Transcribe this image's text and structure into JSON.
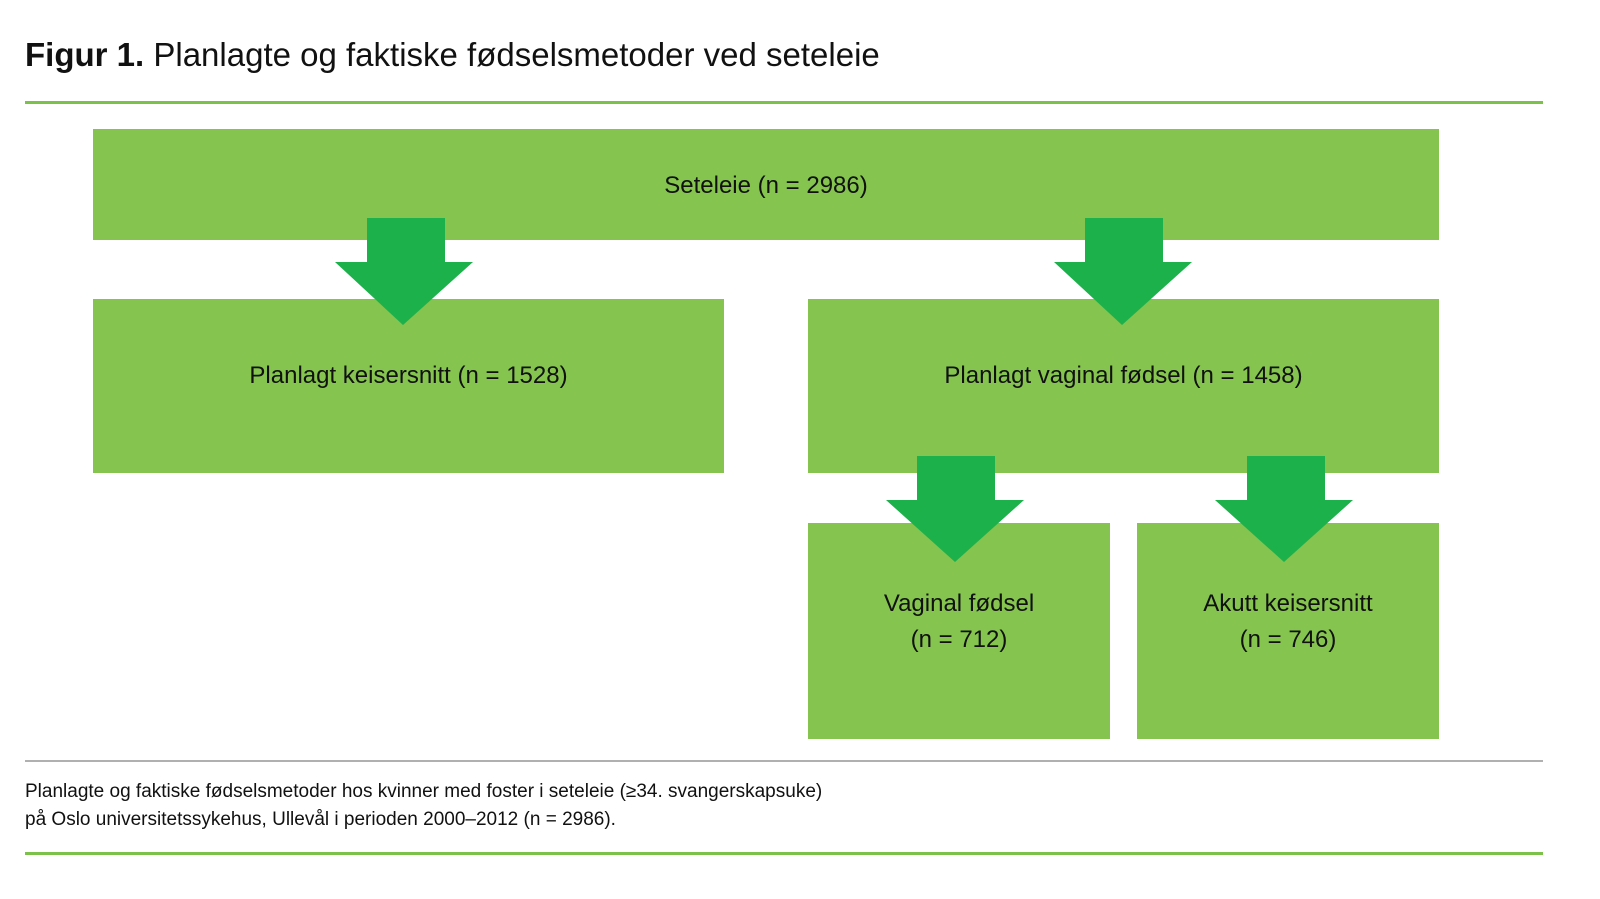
{
  "title": {
    "prefix": "Figur 1.",
    "text": "Planlagte og faktiske fødselsmetoder ved seteleie"
  },
  "colors": {
    "box": "#85c44e",
    "arrow": "#1db14b",
    "rule": "#7cc24a"
  },
  "nodes": {
    "root": {
      "label": "Seteleie (n = 2986)"
    },
    "planned_cesarean": {
      "label": "Planlagt keisersnitt (n = 1528)"
    },
    "planned_vaginal": {
      "label": "Planlagt vaginal fødsel (n = 1458)"
    },
    "vaginal": {
      "line1": "Vaginal fødsel",
      "line2": "(n = 712)"
    },
    "emergency_cesarean": {
      "line1": "Akutt keisersnitt",
      "line2": "(n = 746)"
    }
  },
  "caption": {
    "line1": "Planlagte og faktiske fødselsmetoder hos kvinner med foster i seteleie (≥34. svangerskapsuke)",
    "line2": "på Oslo universitetssykehus, Ullevål i perioden 2000–2012 (n = 2986)."
  }
}
